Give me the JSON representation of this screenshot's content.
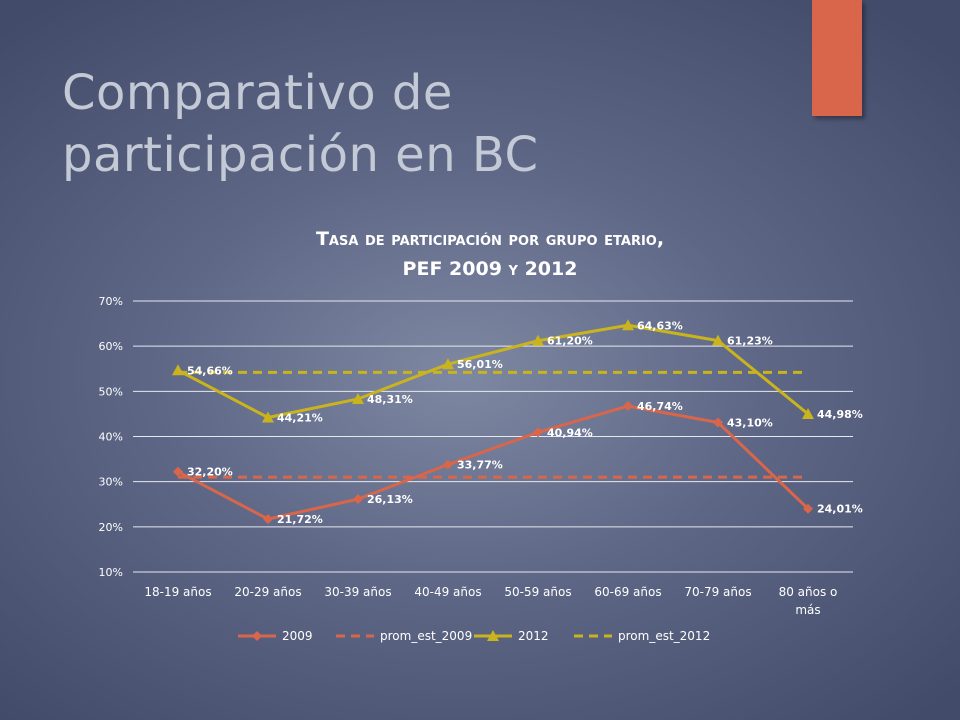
{
  "slide": {
    "title": "Comparativo de participación en BC",
    "accent_color": "#d9664a"
  },
  "chart_data": {
    "type": "line",
    "title_line1": "Tasa de participación por grupo etario,",
    "title_line2": "PEF 2009 y 2012",
    "categories": [
      "18-19 años",
      "20-29 años",
      "30-39 años",
      "40-49 años",
      "50-59 años",
      "60-69 años",
      "70-79 años",
      "80 años o más"
    ],
    "category_lines": [
      [
        "18-19 años"
      ],
      [
        "20-29 años"
      ],
      [
        "30-39 años"
      ],
      [
        "40-49 años"
      ],
      [
        "50-59 años"
      ],
      [
        "60-69 años"
      ],
      [
        "70-79 años"
      ],
      [
        "80 años o",
        "más"
      ]
    ],
    "y_ticks": [
      "10%",
      "20%",
      "30%",
      "40%",
      "50%",
      "60%",
      "70%"
    ],
    "ylim": [
      10,
      70
    ],
    "grid": true,
    "legend_position": "bottom",
    "series": [
      {
        "name": "2009",
        "color": "#d9664a",
        "style": "solid",
        "marker": "diamond",
        "values": [
          32.2,
          21.72,
          26.13,
          33.77,
          40.94,
          46.74,
          43.1,
          24.01
        ],
        "labels": [
          "32,20%",
          "21,72%",
          "26,13%",
          "33,77%",
          "40,94%",
          "46,74%",
          "43,10%",
          "24,01%"
        ]
      },
      {
        "name": "prom_est_2009",
        "color": "#d9664a",
        "style": "dashed",
        "marker": "none",
        "values": [
          31.0,
          31.0,
          31.0,
          31.0,
          31.0,
          31.0,
          31.0,
          31.0
        ]
      },
      {
        "name": "2012",
        "color": "#c9b41e",
        "style": "solid",
        "marker": "triangle",
        "values": [
          54.66,
          44.21,
          48.31,
          56.01,
          61.2,
          64.63,
          61.23,
          44.98
        ],
        "labels": [
          "54,66%",
          "44,21%",
          "48,31%",
          "56,01%",
          "61,20%",
          "64,63%",
          "61,23%",
          "44,98%"
        ]
      },
      {
        "name": "prom_est_2012",
        "color": "#c9b41e",
        "style": "dashed",
        "marker": "none",
        "values": [
          54.2,
          54.2,
          54.2,
          54.2,
          54.2,
          54.2,
          54.2,
          54.2
        ]
      }
    ]
  }
}
